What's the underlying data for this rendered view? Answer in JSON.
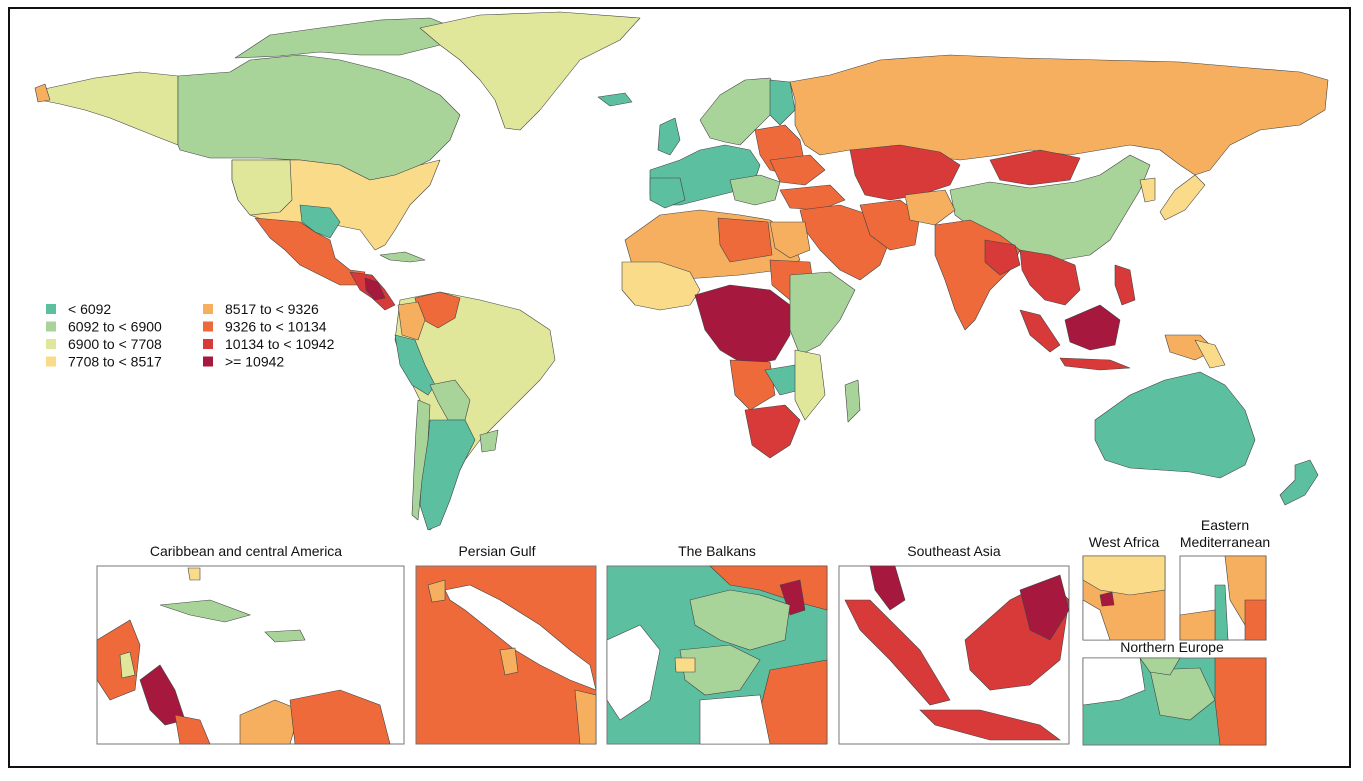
{
  "legend": {
    "items": [
      {
        "label": "< 6092",
        "color": "#5CBFA0"
      },
      {
        "label": "6092 to < 6900",
        "color": "#A8D49A"
      },
      {
        "label": "6900 to < 7708",
        "color": "#E1E79A"
      },
      {
        "label": "7708 to < 8517",
        "color": "#F9DB8A"
      },
      {
        "label": "8517 to < 9326",
        "color": "#F6AF5F"
      },
      {
        "label": "9326 to < 10134",
        "color": "#EE6A3A"
      },
      {
        "label": "10134 to < 10942",
        "color": "#D83A3A"
      },
      {
        "label": ">= 10942",
        "color": "#A6183E"
      }
    ]
  },
  "insets": {
    "caribbean": "Caribbean and central America",
    "persian_gulf": "Persian Gulf",
    "balkans": "The Balkans",
    "southeast_asia": "Southeast Asia",
    "west_africa": "West Africa",
    "eastern_med_line1": "Eastern",
    "eastern_med_line2": "Mediterranean",
    "northern_europe": "Northern Europe"
  },
  "colors": {
    "c1": "#5CBFA0",
    "c2": "#A8D49A",
    "c3": "#E1E79A",
    "c4": "#F9DB8A",
    "c5": "#F6AF5F",
    "c6": "#EE6A3A",
    "c7": "#D83A3A",
    "c8": "#A6183E",
    "border": "#444444"
  }
}
